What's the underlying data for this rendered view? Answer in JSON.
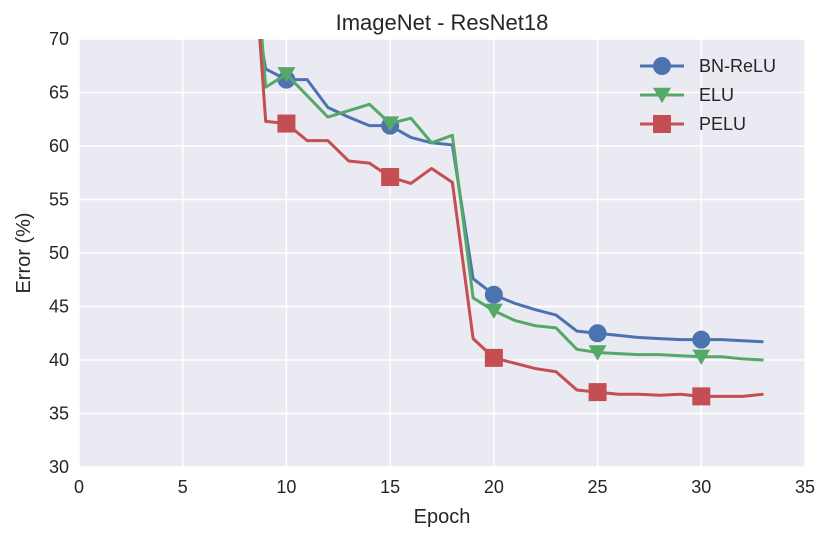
{
  "chart_data": {
    "type": "line",
    "title": "ImageNet - ResNet18",
    "xlabel": "Epoch",
    "ylabel": "Error (%)",
    "xlim": [
      0,
      35
    ],
    "ylim": [
      30,
      70
    ],
    "xticks": [
      "0",
      "5",
      "10",
      "15",
      "20",
      "25",
      "30",
      "35"
    ],
    "yticks": [
      "30",
      "35",
      "40",
      "45",
      "50",
      "55",
      "60",
      "65",
      "70"
    ],
    "grid": true,
    "background": "#EAEAF2",
    "legend_position": "top-right",
    "series": [
      {
        "name": "BN-ReLU",
        "color": "#4C72B0",
        "marker": "circle",
        "x": [
          8.7,
          9,
          10,
          11,
          12,
          13,
          14,
          15,
          16,
          17,
          18,
          19,
          20,
          21,
          22,
          23,
          24,
          25,
          26,
          27,
          28,
          29,
          30,
          31,
          32,
          33
        ],
        "y": [
          70.5,
          67.2,
          66.2,
          66.2,
          63.6,
          62.7,
          61.9,
          61.9,
          60.8,
          60.3,
          60.1,
          47.6,
          46.1,
          45.3,
          44.7,
          44.2,
          42.7,
          42.5,
          42.3,
          42.1,
          42.0,
          41.9,
          41.9,
          41.9,
          41.8,
          41.7
        ],
        "marker_x": [
          10,
          15,
          20,
          25,
          30
        ]
      },
      {
        "name": "ELU",
        "color": "#55A868",
        "marker": "triangle-down",
        "x": [
          8.8,
          9,
          10,
          11,
          12,
          13,
          14,
          15,
          16,
          17,
          18,
          19,
          20,
          21,
          22,
          23,
          24,
          25,
          26,
          27,
          28,
          29,
          30,
          31,
          32,
          33
        ],
        "y": [
          70.5,
          65.5,
          66.7,
          64.7,
          62.7,
          63.3,
          63.9,
          62.1,
          62.6,
          60.3,
          61.0,
          45.8,
          44.6,
          43.7,
          43.2,
          43.0,
          41.0,
          40.7,
          40.6,
          40.5,
          40.5,
          40.4,
          40.3,
          40.3,
          40.1,
          40.0
        ],
        "marker_x": [
          10,
          15,
          20,
          25,
          30
        ]
      },
      {
        "name": "PELU",
        "color": "#C44E52",
        "marker": "square",
        "x": [
          8.7,
          9,
          10,
          11,
          12,
          13,
          14,
          15,
          16,
          17,
          18,
          19,
          20,
          21,
          22,
          23,
          24,
          25,
          26,
          27,
          28,
          29,
          30,
          31,
          32,
          33
        ],
        "y": [
          70.5,
          62.3,
          62.1,
          60.5,
          60.5,
          58.6,
          58.4,
          57.1,
          56.5,
          57.9,
          56.6,
          42.0,
          40.2,
          39.7,
          39.2,
          38.9,
          37.2,
          37.0,
          36.8,
          36.8,
          36.7,
          36.8,
          36.6,
          36.6,
          36.6,
          36.8
        ],
        "marker_x": [
          10,
          15,
          20,
          25,
          30
        ]
      }
    ]
  }
}
